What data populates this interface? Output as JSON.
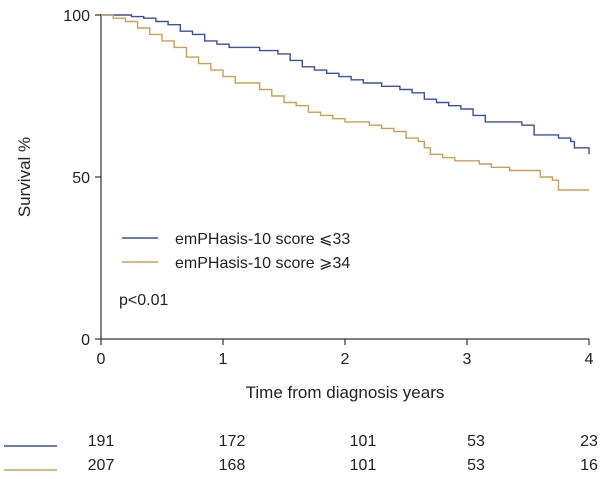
{
  "chart_data": {
    "type": "line",
    "subtype": "kaplan-meier",
    "xlabel": "Time from diagnosis years",
    "ylabel": "Survival %",
    "xlim": [
      0,
      4
    ],
    "ylim": [
      0,
      100
    ],
    "x_ticks": [
      "0",
      "1",
      "2",
      "3",
      "4"
    ],
    "y_ticks": [
      "0",
      "50",
      "100"
    ],
    "grid": false,
    "legend_position": "center-left",
    "annotation": "p<0.01",
    "series": [
      {
        "name": "emPHasis-10 score ⩽33",
        "color": "#3a4fa0",
        "points": [
          [
            0,
            100
          ],
          [
            0.15,
            100
          ],
          [
            0.25,
            99.5
          ],
          [
            0.35,
            99
          ],
          [
            0.45,
            98
          ],
          [
            0.55,
            97
          ],
          [
            0.65,
            95
          ],
          [
            0.75,
            94
          ],
          [
            0.85,
            92
          ],
          [
            0.95,
            91
          ],
          [
            1.05,
            90
          ],
          [
            1.2,
            90
          ],
          [
            1.3,
            89
          ],
          [
            1.45,
            88
          ],
          [
            1.55,
            86
          ],
          [
            1.65,
            84
          ],
          [
            1.75,
            83
          ],
          [
            1.85,
            82
          ],
          [
            1.95,
            81
          ],
          [
            2.05,
            80
          ],
          [
            2.15,
            79
          ],
          [
            2.3,
            78
          ],
          [
            2.45,
            77
          ],
          [
            2.55,
            76
          ],
          [
            2.65,
            74
          ],
          [
            2.75,
            73
          ],
          [
            2.85,
            72
          ],
          [
            2.95,
            71
          ],
          [
            3.05,
            69
          ],
          [
            3.15,
            67
          ],
          [
            3.4,
            67
          ],
          [
            3.45,
            66
          ],
          [
            3.55,
            63
          ],
          [
            3.65,
            63
          ],
          [
            3.75,
            62
          ],
          [
            3.85,
            61
          ],
          [
            3.88,
            59
          ],
          [
            3.99,
            59
          ],
          [
            4.0,
            57
          ]
        ],
        "numbers_at_risk": [
          "191",
          "172",
          "101",
          "53",
          "23"
        ]
      },
      {
        "name": "emPHasis-10 score ⩾34",
        "color": "#c9a055",
        "points": [
          [
            0,
            100
          ],
          [
            0.1,
            99
          ],
          [
            0.2,
            98
          ],
          [
            0.3,
            96
          ],
          [
            0.4,
            94
          ],
          [
            0.5,
            92
          ],
          [
            0.6,
            90
          ],
          [
            0.7,
            87
          ],
          [
            0.8,
            85
          ],
          [
            0.9,
            83
          ],
          [
            1.0,
            81
          ],
          [
            1.1,
            79
          ],
          [
            1.2,
            79
          ],
          [
            1.3,
            77
          ],
          [
            1.4,
            75
          ],
          [
            1.5,
            73
          ],
          [
            1.6,
            72
          ],
          [
            1.7,
            70
          ],
          [
            1.8,
            69
          ],
          [
            1.9,
            68
          ],
          [
            2.0,
            67
          ],
          [
            2.1,
            67
          ],
          [
            2.2,
            66
          ],
          [
            2.3,
            65
          ],
          [
            2.4,
            64
          ],
          [
            2.5,
            62
          ],
          [
            2.6,
            61
          ],
          [
            2.65,
            59
          ],
          [
            2.7,
            57
          ],
          [
            2.8,
            56
          ],
          [
            2.9,
            55
          ],
          [
            3.0,
            55
          ],
          [
            3.1,
            54
          ],
          [
            3.2,
            53
          ],
          [
            3.35,
            52
          ],
          [
            3.55,
            52
          ],
          [
            3.6,
            50
          ],
          [
            3.7,
            49
          ],
          [
            3.75,
            46
          ],
          [
            4.0,
            46
          ]
        ],
        "numbers_at_risk": [
          "207",
          "168",
          "101",
          "53",
          "16"
        ]
      }
    ]
  }
}
